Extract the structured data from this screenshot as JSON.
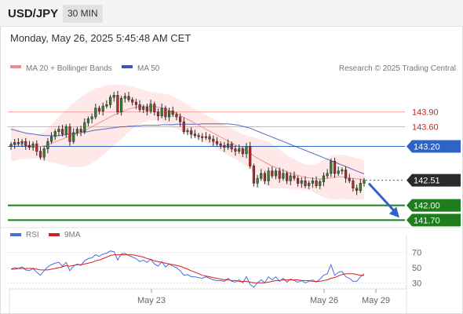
{
  "header": {
    "symbol": "USD/JPY",
    "timeframe": "30 MIN",
    "datetime": "Monday, May 26, 2025 5:45:48 AM CET"
  },
  "legend": {
    "ma20_label": "MA 20 + Bollinger Bands",
    "ma50_label": "MA 50",
    "credit": "Research © 2025 Trading Central",
    "rsi_label": "RSI",
    "ma9_label": "9MA"
  },
  "colors": {
    "bollinger_fill": "#fde0e0",
    "ma20": "#f08c8c",
    "ma50": "#3b55b8",
    "resistance": "#f4a5a5",
    "resistance_text": "#cc2222",
    "pivot": "#2e64c8",
    "support": "#1e7e1e",
    "current": "#2b2b2b",
    "candle": "#2b2b2b",
    "bull": "#2f8a2f",
    "bear": "#c02a2a",
    "rsi": "#4a70d9",
    "ma9": "#d42020",
    "arrow": "#2e64c8"
  },
  "chart_data": [
    {
      "type": "candlestick",
      "instrument": "USD/JPY",
      "timeframe": "30 MIN",
      "ylim": [
        141.45,
        144.55
      ],
      "x_ticks": [
        "May 23",
        "May 26",
        "May 29"
      ],
      "levels": [
        {
          "value": 143.9,
          "label": "143.90",
          "kind": "resistance"
        },
        {
          "value": 143.6,
          "label": "143.60",
          "kind": "resistance"
        },
        {
          "value": 143.2,
          "label": "143.20",
          "kind": "pivot"
        },
        {
          "value": 142.51,
          "label": "142.51",
          "kind": "current"
        },
        {
          "value": 142.0,
          "label": "142.00",
          "kind": "support"
        },
        {
          "value": 141.7,
          "label": "141.70",
          "kind": "support"
        }
      ],
      "close": [
        143.24,
        143.28,
        143.26,
        143.3,
        143.22,
        143.18,
        143.25,
        143.1,
        142.98,
        143.15,
        143.3,
        143.4,
        143.5,
        143.55,
        143.45,
        143.6,
        143.3,
        143.48,
        143.55,
        143.5,
        143.68,
        143.76,
        143.8,
        143.98,
        143.92,
        144.02,
        144.05,
        144.2,
        144.24,
        143.9,
        144.18,
        144.22,
        144.15,
        144.1,
        144.05,
        143.95,
        144.0,
        143.92,
        144.06,
        143.9,
        143.82,
        143.98,
        143.8,
        143.92,
        143.85,
        143.8,
        143.7,
        143.5,
        143.52,
        143.45,
        143.42,
        143.4,
        143.38,
        143.4,
        143.35,
        143.3,
        143.25,
        143.22,
        143.18,
        143.25,
        143.15,
        143.1,
        143.15,
        143.05,
        143.2,
        142.8,
        142.45,
        142.55,
        142.65,
        142.5,
        142.7,
        142.6,
        142.7,
        142.55,
        142.65,
        142.5,
        142.6,
        142.55,
        142.45,
        142.5,
        142.4,
        142.45,
        142.5,
        142.4,
        142.48,
        142.6,
        142.65,
        142.9,
        142.65,
        142.7,
        142.72,
        142.55,
        142.5,
        142.35,
        142.3,
        142.45,
        142.51
      ],
      "ma20": [
        143.25,
        143.24,
        143.24,
        143.23,
        143.22,
        143.21,
        143.2,
        143.2,
        143.2,
        143.21,
        143.23,
        143.26,
        143.29,
        143.32,
        143.35,
        143.38,
        143.4,
        143.43,
        143.46,
        143.49,
        143.52,
        143.56,
        143.6,
        143.64,
        143.68,
        143.72,
        143.76,
        143.8,
        143.84,
        143.87,
        143.9,
        143.93,
        143.96,
        143.98,
        144.0,
        144.01,
        144.02,
        144.02,
        144.02,
        144.01,
        144.0,
        143.98,
        143.96,
        143.93,
        143.9,
        143.87,
        143.83,
        143.79,
        143.75,
        143.71,
        143.67,
        143.63,
        143.59,
        143.55,
        143.51,
        143.47,
        143.43,
        143.39,
        143.35,
        143.31,
        143.27,
        143.23,
        143.19,
        143.15,
        143.11,
        143.06,
        143.01,
        142.96,
        142.92,
        142.88,
        142.84,
        142.8,
        142.77,
        142.74,
        142.71,
        142.68,
        142.65,
        142.63,
        142.61,
        142.59,
        142.57,
        142.56,
        142.55,
        142.54,
        142.54,
        142.54,
        142.55,
        142.56,
        142.57,
        142.58,
        142.58,
        142.57,
        142.56,
        142.55,
        142.54,
        142.53,
        142.52
      ],
      "bb_upper": [
        143.6,
        143.58,
        143.55,
        143.52,
        143.5,
        143.48,
        143.45,
        143.44,
        143.45,
        143.5,
        143.57,
        143.65,
        143.72,
        143.8,
        143.88,
        143.95,
        144.02,
        144.08,
        144.14,
        144.2,
        144.25,
        144.3,
        144.34,
        144.38,
        144.4,
        144.42,
        144.44,
        144.45,
        144.46,
        144.46,
        144.45,
        144.44,
        144.43,
        144.41,
        144.39,
        144.37,
        144.35,
        144.33,
        144.31,
        144.3,
        144.29,
        144.28,
        144.27,
        144.25,
        144.22,
        144.18,
        144.14,
        144.1,
        144.05,
        144.0,
        143.96,
        143.92,
        143.88,
        143.84,
        143.8,
        143.76,
        143.72,
        143.68,
        143.64,
        143.6,
        143.56,
        143.52,
        143.48,
        143.45,
        143.42,
        143.4,
        143.38,
        143.36,
        143.34,
        143.32,
        143.3,
        143.25,
        143.2,
        143.14,
        143.08,
        143.02,
        142.98,
        142.94,
        142.9,
        142.86,
        142.84,
        142.82,
        142.82,
        142.84,
        142.88,
        142.92,
        142.96,
        143.0,
        143.02,
        143.03,
        143.03,
        143.02,
        143.0,
        142.98,
        142.96,
        142.94,
        142.92
      ],
      "bb_lower": [
        142.9,
        142.9,
        142.93,
        142.94,
        142.94,
        142.94,
        142.95,
        142.96,
        142.95,
        142.92,
        142.89,
        142.87,
        142.86,
        142.84,
        142.82,
        142.81,
        142.78,
        142.78,
        142.78,
        142.78,
        142.79,
        142.82,
        142.86,
        142.9,
        142.96,
        143.02,
        143.08,
        143.15,
        143.22,
        143.28,
        143.35,
        143.42,
        143.49,
        143.55,
        143.61,
        143.65,
        143.69,
        143.71,
        143.73,
        143.72,
        143.71,
        143.68,
        143.65,
        143.61,
        143.58,
        143.56,
        143.52,
        143.48,
        143.45,
        143.42,
        143.38,
        143.34,
        143.3,
        143.26,
        143.22,
        143.18,
        143.14,
        143.1,
        143.06,
        143.02,
        142.98,
        142.94,
        142.9,
        142.85,
        142.8,
        142.72,
        142.64,
        142.56,
        142.5,
        142.44,
        142.38,
        142.35,
        142.34,
        142.34,
        142.34,
        142.34,
        142.32,
        142.32,
        142.32,
        142.32,
        142.3,
        142.3,
        142.28,
        142.24,
        142.2,
        142.16,
        142.14,
        142.12,
        142.12,
        142.13,
        142.13,
        142.12,
        142.12,
        142.12,
        142.12,
        142.12,
        142.12
      ],
      "ma50": [
        143.55,
        143.53,
        143.51,
        143.49,
        143.47,
        143.46,
        143.45,
        143.44,
        143.43,
        143.42,
        143.42,
        143.42,
        143.42,
        143.42,
        143.43,
        143.44,
        143.45,
        143.46,
        143.47,
        143.48,
        143.49,
        143.5,
        143.52,
        143.53,
        143.54,
        143.55,
        143.56,
        143.57,
        143.58,
        143.59,
        143.6,
        143.6,
        143.61,
        143.61,
        143.62,
        143.62,
        143.63,
        143.63,
        143.63,
        143.63,
        143.63,
        143.64,
        143.64,
        143.64,
        143.64,
        143.65,
        143.65,
        143.65,
        143.65,
        143.65,
        143.65,
        143.65,
        143.66,
        143.66,
        143.66,
        143.66,
        143.66,
        143.66,
        143.66,
        143.66,
        143.65,
        143.64,
        143.63,
        143.61,
        143.59,
        143.57,
        143.54,
        143.51,
        143.48,
        143.45,
        143.42,
        143.39,
        143.36,
        143.33,
        143.3,
        143.27,
        143.24,
        143.21,
        143.18,
        143.15,
        143.12,
        143.09,
        143.06,
        143.03,
        143.0,
        142.97,
        142.94,
        142.91,
        142.88,
        142.85,
        142.82,
        142.79,
        142.76,
        142.73,
        142.7,
        142.67,
        142.64
      ]
    },
    {
      "type": "line",
      "title": "RSI",
      "ylim": [
        20,
        80
      ],
      "y_ticks": [
        70,
        50,
        30
      ],
      "series": [
        {
          "name": "RSI",
          "values": [
            48,
            50,
            49,
            51,
            47,
            46,
            49,
            44,
            40,
            46,
            51,
            54,
            56,
            57,
            52,
            57,
            46,
            52,
            55,
            53,
            59,
            62,
            63,
            67,
            65,
            68,
            69,
            72,
            71,
            60,
            68,
            69,
            66,
            64,
            62,
            58,
            60,
            57,
            61,
            55,
            52,
            58,
            51,
            55,
            52,
            50,
            46,
            40,
            41,
            38,
            38,
            37,
            36,
            38,
            36,
            34,
            33,
            33,
            32,
            36,
            32,
            31,
            34,
            30,
            38,
            28,
            24,
            30,
            34,
            30,
            38,
            34,
            38,
            32,
            36,
            31,
            35,
            33,
            31,
            33,
            30,
            32,
            34,
            31,
            35,
            40,
            42,
            54,
            40,
            44,
            45,
            38,
            36,
            32,
            32,
            38,
            42
          ]
        },
        {
          "name": "9MA",
          "values": [
            48,
            48,
            49,
            49,
            49,
            49,
            49,
            48,
            47,
            47,
            47,
            48,
            49,
            50,
            51,
            53,
            52,
            53,
            54,
            54,
            55,
            56,
            57,
            59,
            60,
            62,
            64,
            66,
            67,
            67,
            67,
            67,
            67,
            67,
            66,
            65,
            64,
            62,
            61,
            59,
            58,
            57,
            56,
            55,
            54,
            53,
            52,
            50,
            48,
            46,
            44,
            42,
            40,
            39,
            38,
            37,
            36,
            35,
            34,
            34,
            33,
            33,
            32,
            32,
            32,
            31,
            30,
            30,
            30,
            30,
            31,
            32,
            33,
            33,
            34,
            34,
            34,
            34,
            34,
            33,
            33,
            33,
            32,
            32,
            32,
            33,
            34,
            36,
            37,
            39,
            41,
            42,
            42,
            42,
            41,
            40,
            40
          ]
        }
      ]
    }
  ]
}
